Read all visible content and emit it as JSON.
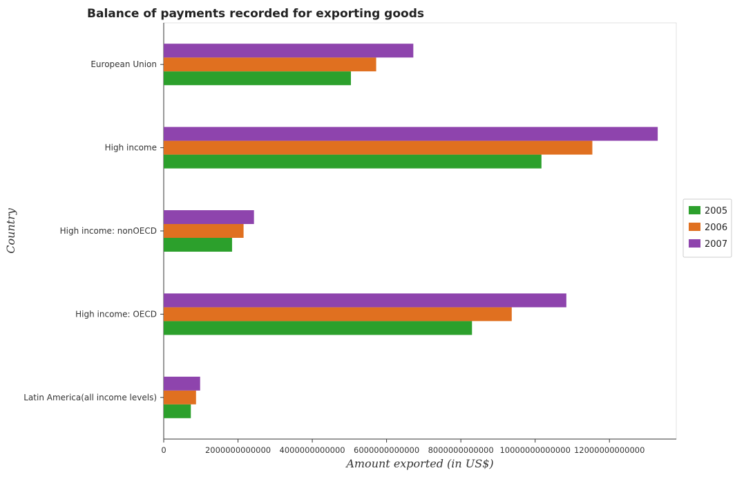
{
  "chart_data": {
    "type": "bar",
    "orientation": "horizontal",
    "title": "Balance of payments recorded for exporting goods",
    "xlabel": "Amount exported (in US$)",
    "ylabel": "Country",
    "categories": [
      "European Union",
      "High income",
      "High income: nonOECD",
      "High income: OECD",
      "Latin America(all income levels)"
    ],
    "series": [
      {
        "name": "2005",
        "color": "#2ca02c",
        "values": [
          5040000000000,
          10170000000000,
          1840000000000,
          8300000000000,
          730000000000
        ]
      },
      {
        "name": "2006",
        "color": "#e07020",
        "values": [
          5720000000000,
          11540000000000,
          2150000000000,
          9370000000000,
          870000000000
        ]
      },
      {
        "name": "2007",
        "color": "#8e44ad",
        "values": [
          6720000000000,
          13300000000000,
          2430000000000,
          10840000000000,
          980000000000
        ]
      }
    ],
    "xlim": [
      0,
      13800000000000
    ],
    "xticks": [
      0,
      2000000000000,
      4000000000000,
      6000000000000,
      8000000000000,
      10000000000000,
      12000000000000
    ],
    "xtick_labels": [
      "0",
      "2000000000000",
      "4000000000000",
      "6000000000000",
      "8000000000000",
      "10000000000000",
      "12000000000000"
    ],
    "legend_position": "right",
    "grid": false
  }
}
